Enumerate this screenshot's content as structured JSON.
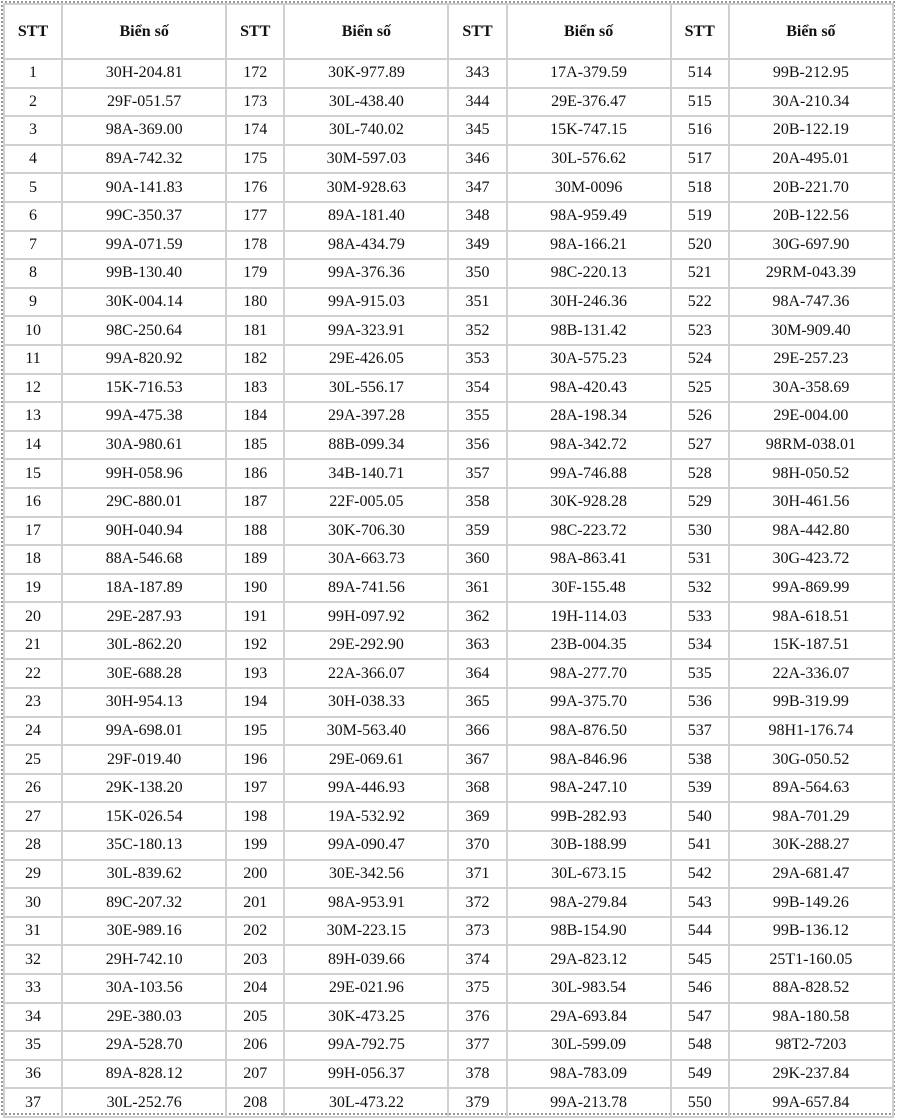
{
  "table": {
    "headers": [
      "STT",
      "Biển số",
      "STT",
      "Biển số",
      "STT",
      "Biển số",
      "STT",
      "Biển số"
    ],
    "rows": [
      [
        "1",
        "30H-204.81",
        "172",
        "30K-977.89",
        "343",
        "17A-379.59",
        "514",
        "99B-212.95"
      ],
      [
        "2",
        "29F-051.57",
        "173",
        "30L-438.40",
        "344",
        "29E-376.47",
        "515",
        "30A-210.34"
      ],
      [
        "3",
        "98A-369.00",
        "174",
        "30L-740.02",
        "345",
        "15K-747.15",
        "516",
        "20B-122.19"
      ],
      [
        "4",
        "89A-742.32",
        "175",
        "30M-597.03",
        "346",
        "30L-576.62",
        "517",
        "20A-495.01"
      ],
      [
        "5",
        "90A-141.83",
        "176",
        "30M-928.63",
        "347",
        "30M-0096",
        "518",
        "20B-221.70"
      ],
      [
        "6",
        "99C-350.37",
        "177",
        "89A-181.40",
        "348",
        "98A-959.49",
        "519",
        "20B-122.56"
      ],
      [
        "7",
        "99A-071.59",
        "178",
        "98A-434.79",
        "349",
        "98A-166.21",
        "520",
        "30G-697.90"
      ],
      [
        "8",
        "99B-130.40",
        "179",
        "99A-376.36",
        "350",
        "98C-220.13",
        "521",
        "29RM-043.39"
      ],
      [
        "9",
        "30K-004.14",
        "180",
        "99A-915.03",
        "351",
        "30H-246.36",
        "522",
        "98A-747.36"
      ],
      [
        "10",
        "98C-250.64",
        "181",
        "99A-323.91",
        "352",
        "98B-131.42",
        "523",
        "30M-909.40"
      ],
      [
        "11",
        "99A-820.92",
        "182",
        "29E-426.05",
        "353",
        "30A-575.23",
        "524",
        "29E-257.23"
      ],
      [
        "12",
        "15K-716.53",
        "183",
        "30L-556.17",
        "354",
        "98A-420.43",
        "525",
        "30A-358.69"
      ],
      [
        "13",
        "99A-475.38",
        "184",
        "29A-397.28",
        "355",
        "28A-198.34",
        "526",
        "29E-004.00"
      ],
      [
        "14",
        "30A-980.61",
        "185",
        "88B-099.34",
        "356",
        "98A-342.72",
        "527",
        "98RM-038.01"
      ],
      [
        "15",
        "99H-058.96",
        "186",
        "34B-140.71",
        "357",
        "99A-746.88",
        "528",
        "98H-050.52"
      ],
      [
        "16",
        "29C-880.01",
        "187",
        "22F-005.05",
        "358",
        "30K-928.28",
        "529",
        "30H-461.56"
      ],
      [
        "17",
        "90H-040.94",
        "188",
        "30K-706.30",
        "359",
        "98C-223.72",
        "530",
        "98A-442.80"
      ],
      [
        "18",
        "88A-546.68",
        "189",
        "30A-663.73",
        "360",
        "98A-863.41",
        "531",
        "30G-423.72"
      ],
      [
        "19",
        "18A-187.89",
        "190",
        "89A-741.56",
        "361",
        "30F-155.48",
        "532",
        "99A-869.99"
      ],
      [
        "20",
        "29E-287.93",
        "191",
        "99H-097.92",
        "362",
        "19H-114.03",
        "533",
        "98A-618.51"
      ],
      [
        "21",
        "30L-862.20",
        "192",
        "29E-292.90",
        "363",
        "23B-004.35",
        "534",
        "15K-187.51"
      ],
      [
        "22",
        "30E-688.28",
        "193",
        "22A-366.07",
        "364",
        "98A-277.70",
        "535",
        "22A-336.07"
      ],
      [
        "23",
        "30H-954.13",
        "194",
        "30H-038.33",
        "365",
        "99A-375.70",
        "536",
        "99B-319.99"
      ],
      [
        "24",
        "99A-698.01",
        "195",
        "30M-563.40",
        "366",
        "98A-876.50",
        "537",
        "98H1-176.74"
      ],
      [
        "25",
        "29F-019.40",
        "196",
        "29E-069.61",
        "367",
        "98A-846.96",
        "538",
        "30G-050.52"
      ],
      [
        "26",
        "29K-138.20",
        "197",
        "99A-446.93",
        "368",
        "98A-247.10",
        "539",
        "89A-564.63"
      ],
      [
        "27",
        "15K-026.54",
        "198",
        "19A-532.92",
        "369",
        "99B-282.93",
        "540",
        "98A-701.29"
      ],
      [
        "28",
        "35C-180.13",
        "199",
        "99A-090.47",
        "370",
        "30B-188.99",
        "541",
        "30K-288.27"
      ],
      [
        "29",
        "30L-839.62",
        "200",
        "30E-342.56",
        "371",
        "30L-673.15",
        "542",
        "29A-681.47"
      ],
      [
        "30",
        "89C-207.32",
        "201",
        "98A-953.91",
        "372",
        "98A-279.84",
        "543",
        "99B-149.26"
      ],
      [
        "31",
        "30E-989.16",
        "202",
        "30M-223.15",
        "373",
        "98B-154.90",
        "544",
        "99B-136.12"
      ],
      [
        "32",
        "29H-742.10",
        "203",
        "89H-039.66",
        "374",
        "29A-823.12",
        "545",
        "25T1-160.05"
      ],
      [
        "33",
        "30A-103.56",
        "204",
        "29E-021.96",
        "375",
        "30L-983.54",
        "546",
        "88A-828.52"
      ],
      [
        "34",
        "29E-380.03",
        "205",
        "30K-473.25",
        "376",
        "29A-693.84",
        "547",
        "98A-180.58"
      ],
      [
        "35",
        "29A-528.70",
        "206",
        "99A-792.75",
        "377",
        "30L-599.09",
        "548",
        "98T2-7203"
      ],
      [
        "36",
        "89A-828.12",
        "207",
        "99H-056.37",
        "378",
        "98A-783.09",
        "549",
        "29K-237.84"
      ],
      [
        "37",
        "30L-252.76",
        "208",
        "30L-473.22",
        "379",
        "99A-213.78",
        "550",
        "99A-657.84"
      ]
    ]
  }
}
